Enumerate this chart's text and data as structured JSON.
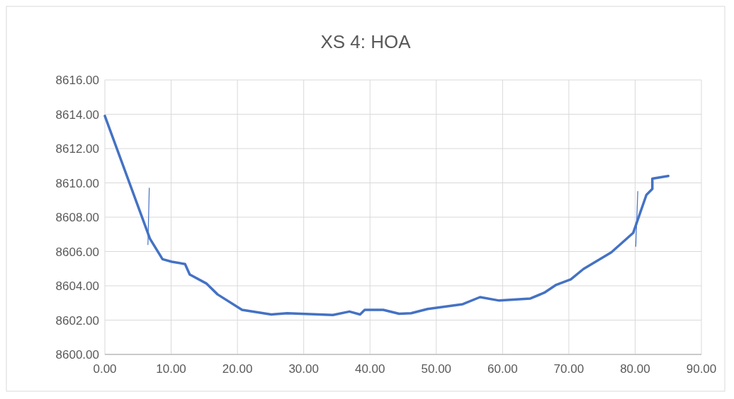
{
  "chart_data": {
    "type": "line",
    "title": "XS 4: HOA",
    "xlim": [
      0,
      90
    ],
    "ylim": [
      8600,
      8616
    ],
    "xticks": [
      {
        "value": 0,
        "label": "0.00"
      },
      {
        "value": 10,
        "label": "10.00"
      },
      {
        "value": 20,
        "label": "20.00"
      },
      {
        "value": 30,
        "label": "30.00"
      },
      {
        "value": 40,
        "label": "40.00"
      },
      {
        "value": 50,
        "label": "50.00"
      },
      {
        "value": 60,
        "label": "60.00"
      },
      {
        "value": 70,
        "label": "70.00"
      },
      {
        "value": 80,
        "label": "80.00"
      },
      {
        "value": 90,
        "label": "90.00"
      }
    ],
    "yticks": [
      {
        "value": 8600,
        "label": "8600.00"
      },
      {
        "value": 8602,
        "label": "8602.00"
      },
      {
        "value": 8604,
        "label": "8604.00"
      },
      {
        "value": 8606,
        "label": "8606.00"
      },
      {
        "value": 8608,
        "label": "8608.00"
      },
      {
        "value": 8610,
        "label": "8610.00"
      },
      {
        "value": 8612,
        "label": "8612.00"
      },
      {
        "value": 8614,
        "label": "8614.00"
      },
      {
        "value": 8616,
        "label": "8616.00"
      }
    ],
    "grid": true,
    "marker": "none",
    "line_style": "solid",
    "series": [
      {
        "color": "#4472c4",
        "x": [
          0,
          6.8,
          8.7,
          10.1,
          12.1,
          12.8,
          15.3,
          17.0,
          20.7,
          25.1,
          27.5,
          34.4,
          36.9,
          38.5,
          39.2,
          42.0,
          44.4,
          46.2,
          48.7,
          54.0,
          56.6,
          59.5,
          64.2,
          66.3,
          68.1,
          70.3,
          72.2,
          76.4,
          79.7,
          81.7,
          82.6,
          82.6,
          85.0
        ],
        "values": [
          8613.9,
          8606.75,
          8605.55,
          8605.4,
          8605.27,
          8604.66,
          8604.14,
          8603.5,
          8602.6,
          8602.33,
          8602.4,
          8602.3,
          8602.5,
          8602.33,
          8602.6,
          8602.6,
          8602.37,
          8602.4,
          8602.65,
          8602.93,
          8603.34,
          8603.14,
          8603.26,
          8603.6,
          8604.06,
          8604.38,
          8604.98,
          8605.95,
          8607.08,
          8609.3,
          8609.65,
          8610.25,
          8610.4
        ]
      },
      {
        "color": "#4472c4",
        "x": [
          6.7,
          6.5
        ],
        "values": [
          8609.7,
          8606.4
        ]
      },
      {
        "color": "#4472c4",
        "x": [
          80.4,
          80.1
        ],
        "values": [
          8609.5,
          8606.3
        ]
      }
    ]
  }
}
